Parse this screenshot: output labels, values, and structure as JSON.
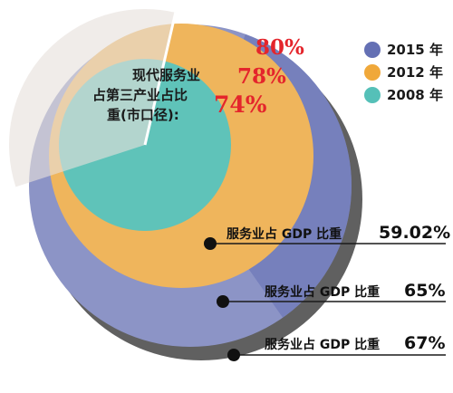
{
  "chart_data": {
    "type": "pie",
    "center_label_lines": [
      "现代服务业",
      "占第三产业占比",
      "重(市口径):"
    ],
    "series": [
      {
        "name": "2015 年",
        "color": "#6470b4",
        "ring_color": "#8c94c6",
        "services_share_of_tertiary": "80%",
        "services_share_of_tertiary_value": 80,
        "gdp_share_label": "服务业占 GDP 比重",
        "gdp_share_value": "67%"
      },
      {
        "name": "2012 年",
        "color": "#f0a83a",
        "ring_color": "#efb55c",
        "services_share_of_tertiary": "78%",
        "services_share_of_tertiary_value": 78,
        "gdp_share_label": "服务业占 GDP 比重",
        "gdp_share_value": "65%"
      },
      {
        "name": "2008 年",
        "color": "#55c0b8",
        "ring_color": "#5fc3b9",
        "services_share_of_tertiary": "74%",
        "services_share_of_tertiary_value": 74,
        "gdp_share_label": "服务业占 GDP 比重",
        "gdp_share_value": "59.02%"
      }
    ],
    "legend_position": "top-right"
  }
}
